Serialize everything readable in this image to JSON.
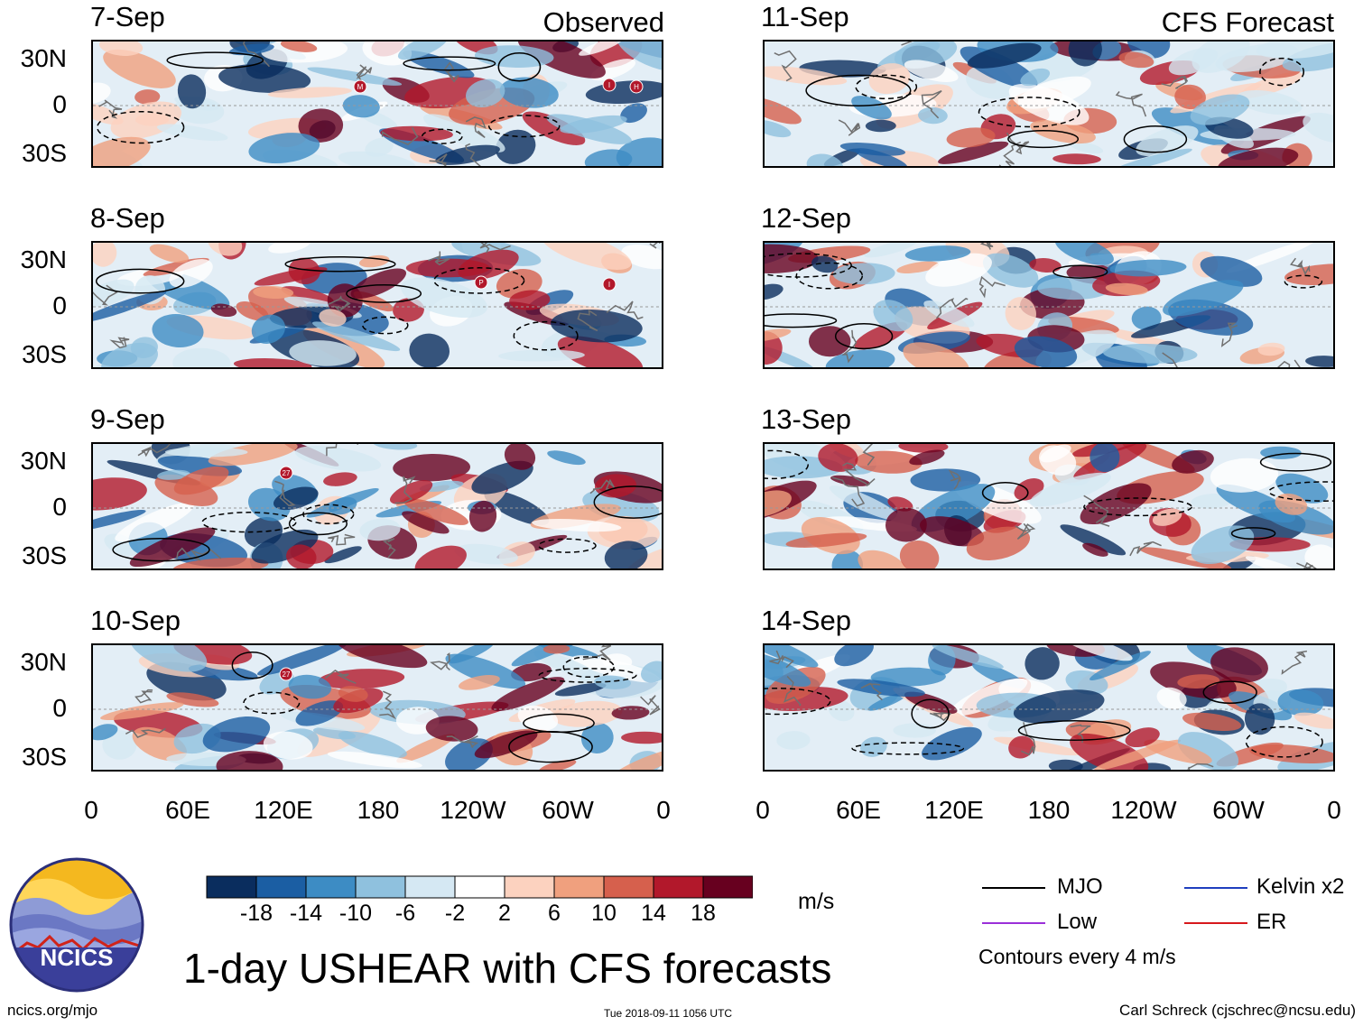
{
  "title": "1-day USHEAR with CFS forecasts",
  "columns": [
    {
      "tag": "Observed",
      "dates": [
        "7-Sep",
        "8-Sep",
        "9-Sep",
        "10-Sep"
      ]
    },
    {
      "tag": "CFS Forecast",
      "dates": [
        "11-Sep",
        "12-Sep",
        "13-Sep",
        "14-Sep"
      ]
    }
  ],
  "lat_labels": [
    "30N",
    "0",
    "30S"
  ],
  "lon_labels": [
    "0",
    "60E",
    "120E",
    "180",
    "120W",
    "60W",
    "0"
  ],
  "colorbar": {
    "units": "m/s",
    "labels": [
      "-18",
      "-14",
      "-10",
      "-6",
      "-2",
      "2",
      "6",
      "10",
      "14",
      "18"
    ],
    "colors": [
      "#0a2d5e",
      "#1b5ea3",
      "#3d8cc4",
      "#8fc1de",
      "#d5e8f3",
      "#ffffff",
      "#fcd2bf",
      "#f0a07e",
      "#d6604d",
      "#b2182b",
      "#67001f"
    ]
  },
  "legend": {
    "items": [
      {
        "label": "MJO",
        "color": "#000000"
      },
      {
        "label": "Kelvin x2",
        "color": "#1f3fbf"
      },
      {
        "label": "Low",
        "color": "#9b30d9"
      },
      {
        "label": "ER",
        "color": "#d7191c"
      }
    ],
    "note": "Contours every 4 m/s"
  },
  "logo": {
    "text": "NCICS"
  },
  "footer": {
    "left": "ncics.org/mjo",
    "middle": "Tue 2018-09-11 1056 UTC",
    "right": "Carl Schreck (cjschrec@ncsu.edu)"
  },
  "storm_markers": [
    {
      "panel": 0,
      "label": "M"
    },
    {
      "panel": 0,
      "label": "I"
    },
    {
      "panel": 0,
      "label": "H"
    },
    {
      "panel": 1,
      "label": "P"
    },
    {
      "panel": 1,
      "label": "I"
    },
    {
      "panel": 2,
      "label": "27"
    },
    {
      "panel": 3,
      "label": "27"
    }
  ]
}
